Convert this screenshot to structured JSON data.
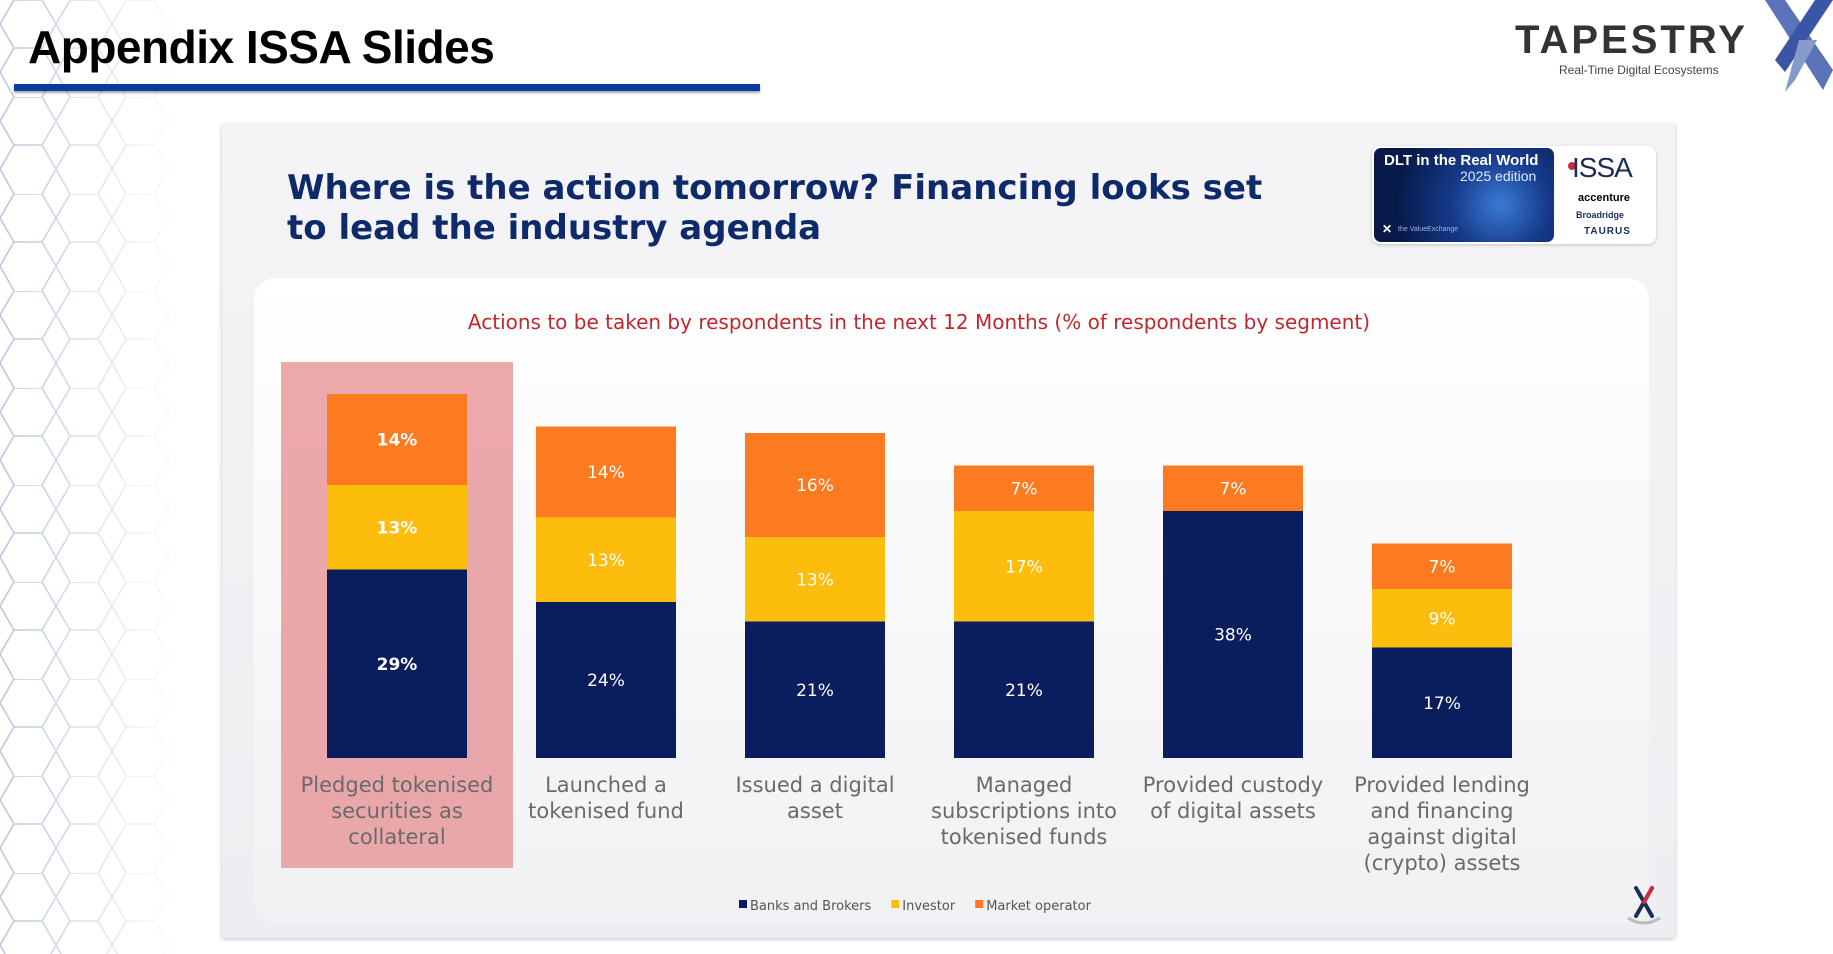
{
  "page": {
    "title": "Appendix ISSA Slides",
    "brand": {
      "name": "TAPESTRY",
      "tagline": "Real-Time Digital Ecosystems"
    }
  },
  "slide": {
    "headline": "Where is the action tomorrow? Financing looks set to lead the industry agenda",
    "report_badge": {
      "title": "DLT in the Real World",
      "edition": "2025 edition",
      "source": "the ValueExchange",
      "logos": [
        "ISSA",
        "accenture",
        "Broadridge",
        "TAURUS"
      ]
    }
  },
  "colors": {
    "banks": "#0a1e5e",
    "investor": "#fdbd0d",
    "market": "#fc7a20",
    "highlight": "#e79497",
    "accent_blue": "#0d3a9e"
  },
  "chart_data": {
    "type": "bar",
    "stacked": true,
    "title": "Actions to be taken by respondents in the next 12 Months (% of respondents by segment)",
    "categories": [
      "Pledged tokenised securities as collateral",
      "Launched a tokenised fund",
      "Issued a digital asset",
      "Managed subscriptions into tokenised funds",
      "Provided custody of digital assets",
      "Provided lending and financing against digital (crypto) assets"
    ],
    "category_lines": [
      [
        "Pledged tokenised",
        "securities as",
        "collateral"
      ],
      [
        "Launched a",
        "tokenised fund"
      ],
      [
        "Issued a digital",
        "asset"
      ],
      [
        "Managed",
        "subscriptions into",
        "tokenised funds"
      ],
      [
        "Provided custody",
        "of digital assets"
      ],
      [
        "Provided lending",
        "and financing",
        "against digital",
        "(crypto) assets"
      ]
    ],
    "series": [
      {
        "name": "Banks and Brokers",
        "values": [
          29,
          24,
          21,
          21,
          38,
          17
        ]
      },
      {
        "name": "Investor",
        "values": [
          13,
          13,
          13,
          17,
          0,
          9
        ]
      },
      {
        "name": "Market operator",
        "values": [
          14,
          14,
          16,
          7,
          7,
          7
        ]
      }
    ],
    "highlighted_category": 0,
    "legend_position": "bottom",
    "grid": false
  }
}
